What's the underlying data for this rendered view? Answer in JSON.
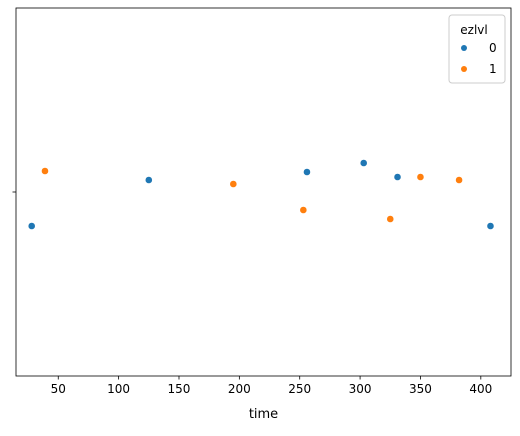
{
  "chart_data": {
    "type": "scatter",
    "title": "",
    "xlabel": "time",
    "ylabel": "",
    "xlim": [
      15,
      425
    ],
    "xticks": [
      50,
      100,
      150,
      200,
      250,
      300,
      350,
      400
    ],
    "yticks": [
      ""
    ],
    "grid": false,
    "legend": {
      "title": "ezlvl",
      "placement": "top-right"
    },
    "series": [
      {
        "name": "0",
        "color": "#1f77b4",
        "x": [
          28,
          125,
          256,
          303,
          331,
          408
        ]
      },
      {
        "name": "1",
        "color": "#ff7f0e",
        "x": [
          39,
          195,
          253,
          325,
          350,
          382
        ]
      }
    ]
  }
}
